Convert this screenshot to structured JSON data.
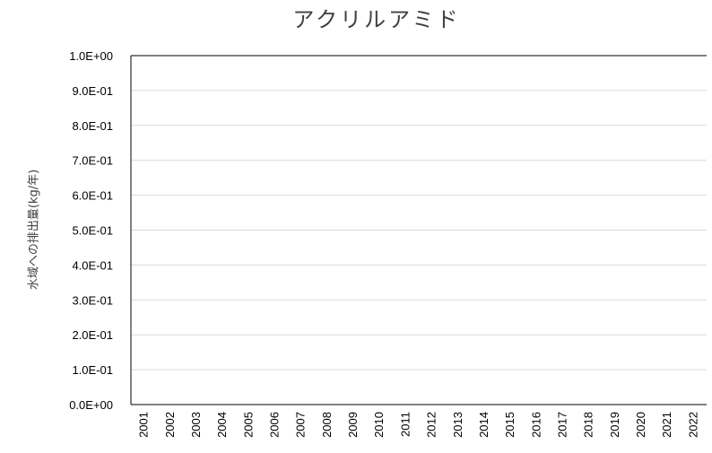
{
  "chart_data": {
    "type": "line",
    "title": "アクリルアミド",
    "ylabel": "水域への排出量(kg/年)",
    "xlabel": "",
    "categories": [
      "2001",
      "2002",
      "2003",
      "2004",
      "2005",
      "2006",
      "2007",
      "2008",
      "2009",
      "2010",
      "2011",
      "2012",
      "2013",
      "2014",
      "2015",
      "2016",
      "2017",
      "2018",
      "2019",
      "2020",
      "2021",
      "2022"
    ],
    "series": [
      {
        "values": [
          null,
          null,
          null,
          null,
          null,
          null,
          null,
          null,
          null,
          null,
          null,
          null,
          null,
          null,
          null,
          null,
          null,
          null,
          null,
          null,
          null,
          null
        ]
      }
    ],
    "ylim": [
      0,
      1
    ],
    "yticks": [
      "0.0E+00",
      "1.0E-01",
      "2.0E-01",
      "3.0E-01",
      "4.0E-01",
      "5.0E-01",
      "6.0E-01",
      "7.0E-01",
      "8.0E-01",
      "9.0E-01",
      "1.0E+00"
    ],
    "grid": true,
    "colors": {
      "grid": "#d9d9d9",
      "axis": "#000000",
      "title": "#404040"
    }
  }
}
